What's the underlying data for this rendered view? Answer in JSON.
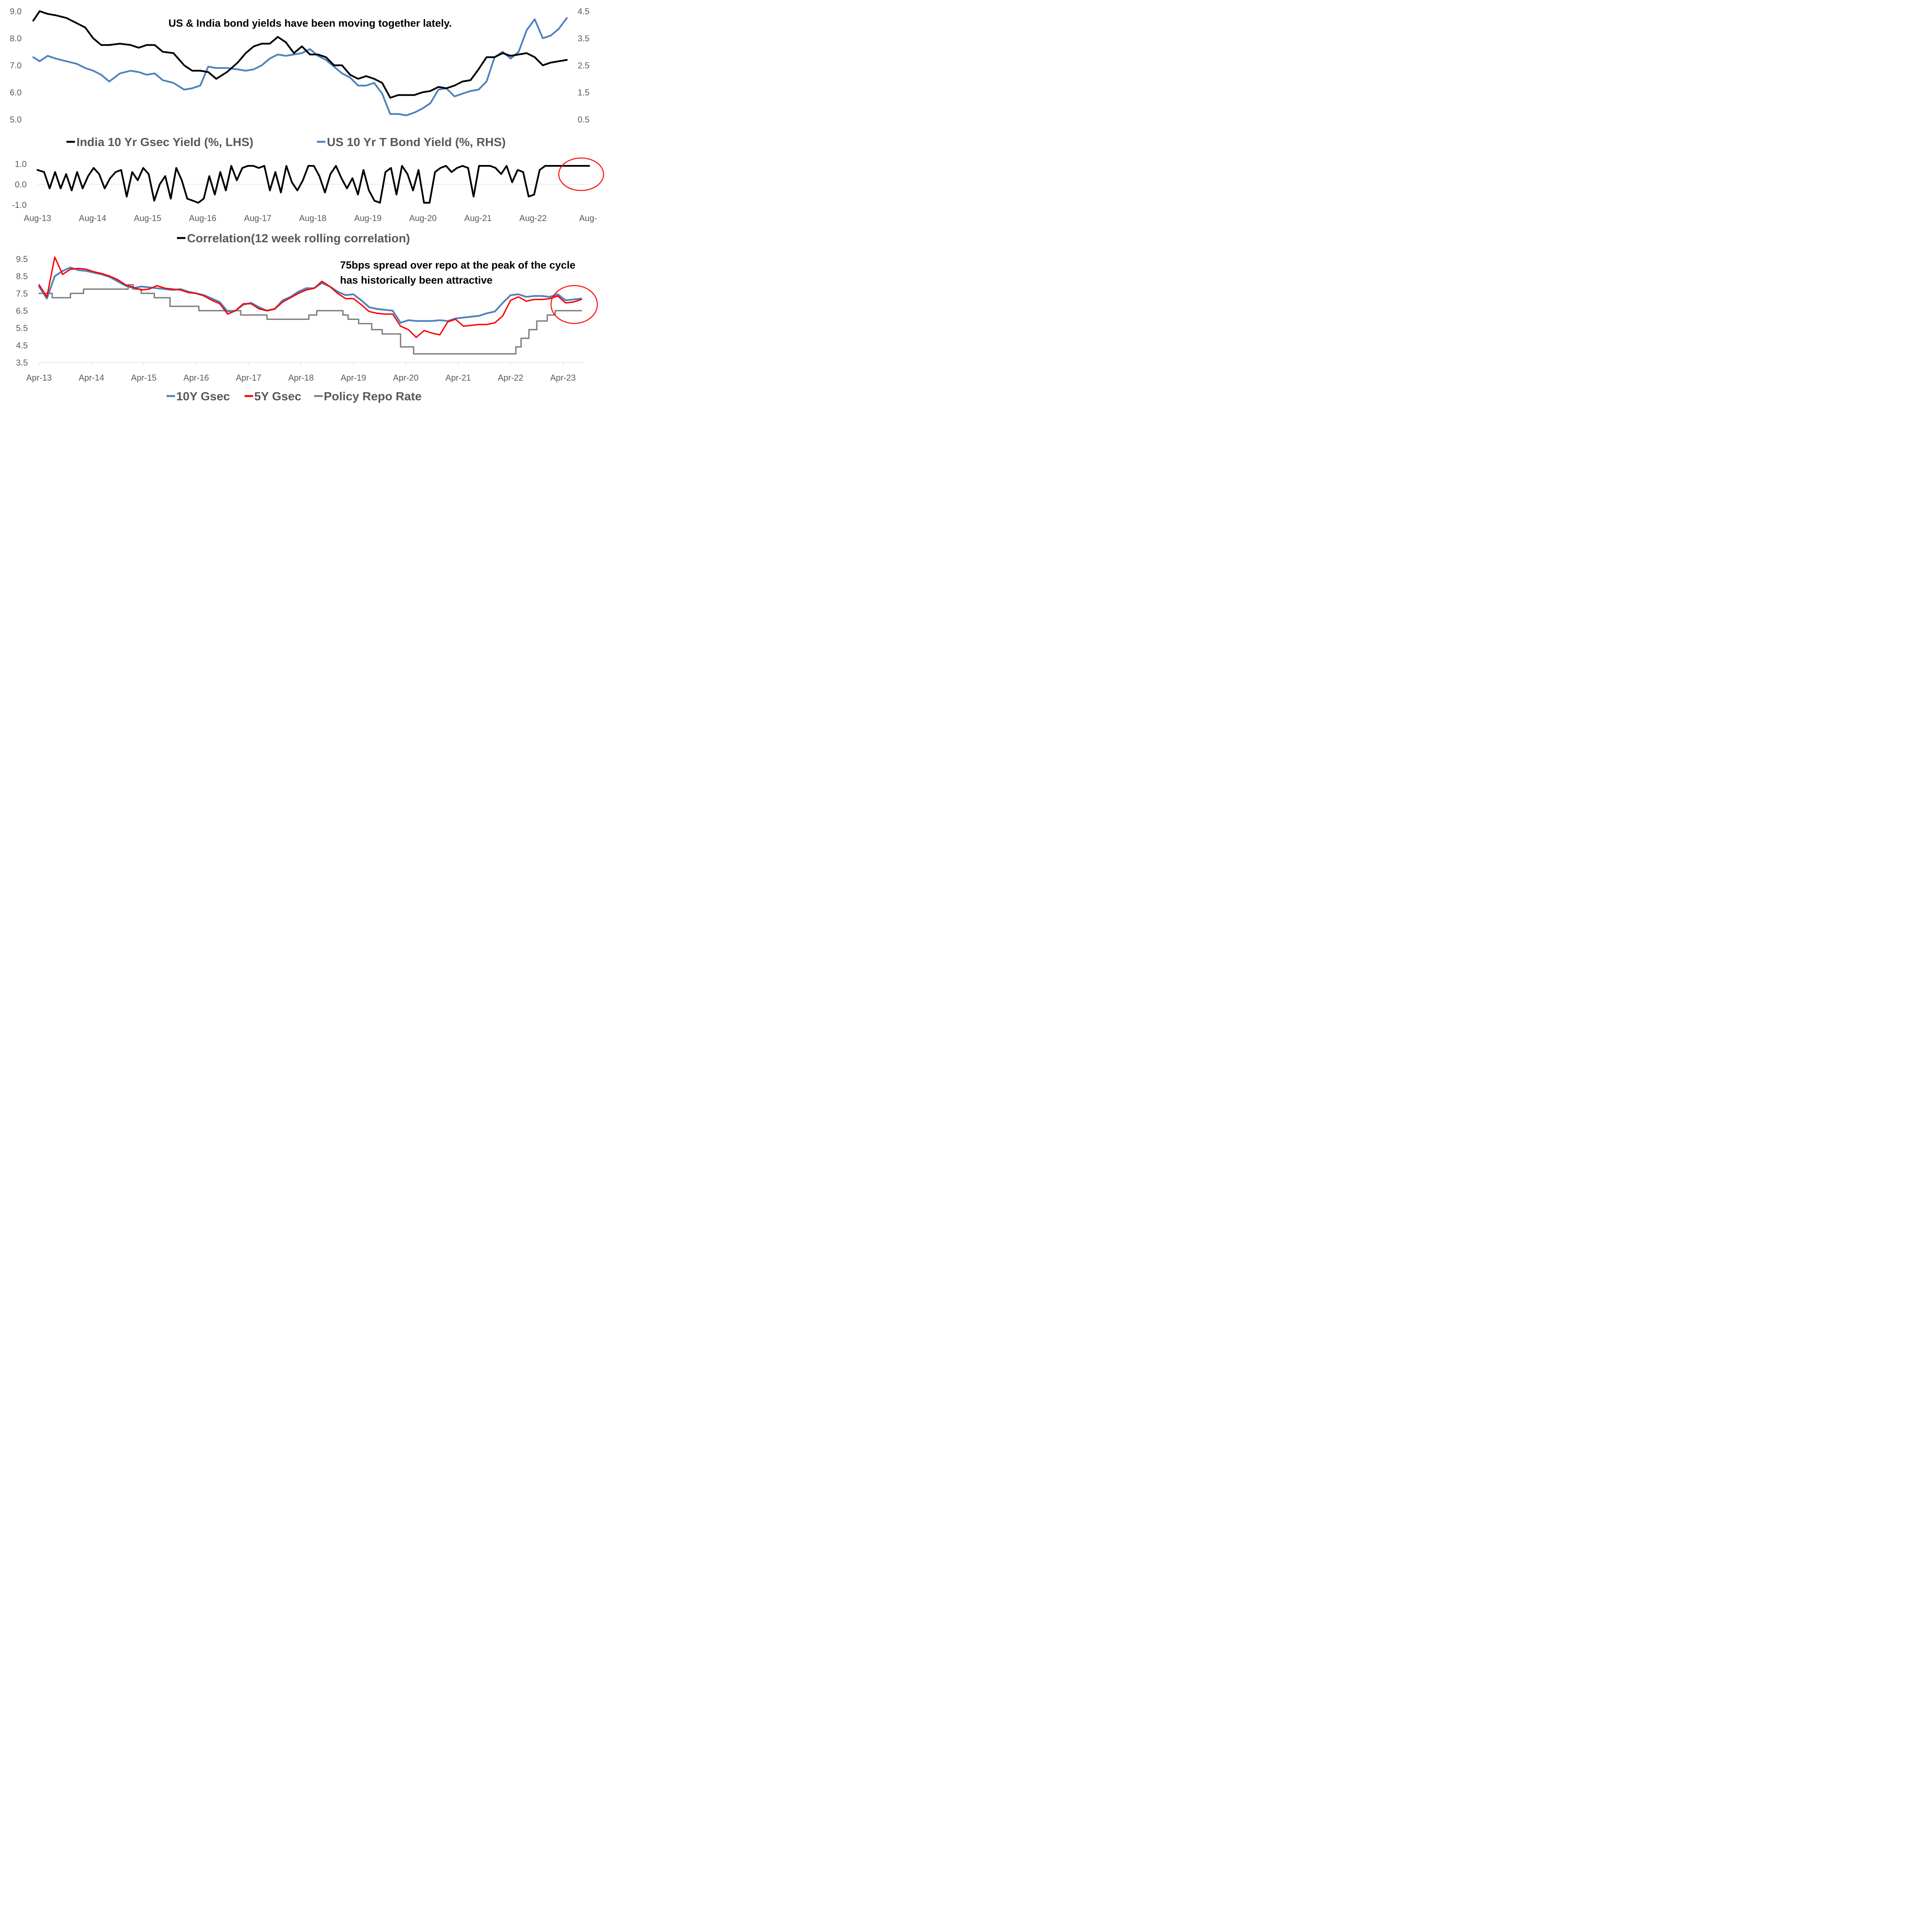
{
  "chart_data": [
    {
      "type": "line",
      "title": "US & India bond yields have been moving together lately.",
      "y_left": {
        "ticks": [
          "9.0",
          "8.0",
          "7.0",
          "6.0",
          "5.0"
        ],
        "range": [
          5.0,
          9.0
        ]
      },
      "y_right": {
        "ticks": [
          "4.5",
          "3.5",
          "2.5",
          "1.5",
          "0.5"
        ],
        "range": [
          0.5,
          4.5
        ]
      },
      "grid": false,
      "legend_position": "bottom",
      "series": [
        {
          "name": "India 10 Yr Gsec Yield (%, LHS)",
          "axis": "left",
          "color": "#000000",
          "x": [
            2013.58,
            2013.7,
            2013.85,
            2014.0,
            2014.2,
            2014.4,
            2014.55,
            2014.7,
            2014.85,
            2015.0,
            2015.2,
            2015.4,
            2015.55,
            2015.7,
            2015.85,
            2016.0,
            2016.2,
            2016.4,
            2016.55,
            2016.7,
            2016.85,
            2017.0,
            2017.2,
            2017.4,
            2017.55,
            2017.7,
            2017.85,
            2018.0,
            2018.15,
            2018.3,
            2018.45,
            2018.6,
            2018.75,
            2018.9,
            2019.05,
            2019.2,
            2019.35,
            2019.5,
            2019.65,
            2019.8,
            2019.95,
            2020.1,
            2020.25,
            2020.4,
            2020.55,
            2020.7,
            2020.85,
            2021.0,
            2021.15,
            2021.3,
            2021.45,
            2021.6,
            2021.75,
            2021.9,
            2022.05,
            2022.2,
            2022.35,
            2022.5,
            2022.65,
            2022.8,
            2022.95,
            2023.1,
            2023.25,
            2023.4,
            2023.55
          ],
          "values": [
            8.65,
            9.0,
            8.9,
            8.85,
            8.75,
            8.55,
            8.4,
            8.0,
            7.75,
            7.75,
            7.8,
            7.75,
            7.65,
            7.75,
            7.75,
            7.5,
            7.45,
            7.0,
            6.8,
            6.8,
            6.75,
            6.5,
            6.75,
            7.1,
            7.45,
            7.7,
            7.8,
            7.8,
            8.05,
            7.85,
            7.45,
            7.7,
            7.4,
            7.4,
            7.3,
            7.0,
            7.0,
            6.65,
            6.5,
            6.6,
            6.5,
            6.35,
            5.8,
            5.9,
            5.9,
            5.9,
            6.0,
            6.05,
            6.2,
            6.15,
            6.25,
            6.4,
            6.45,
            6.85,
            7.3,
            7.3,
            7.45,
            7.35,
            7.4,
            7.45,
            7.3,
            7.0,
            7.1,
            7.15,
            7.2
          ]
        },
        {
          "name": "US 10 Yr T Bond Yield (%, RHS)",
          "axis": "right",
          "color": "#4f81bd",
          "x": [
            2013.58,
            2013.7,
            2013.85,
            2014.0,
            2014.2,
            2014.4,
            2014.55,
            2014.7,
            2014.85,
            2015.0,
            2015.2,
            2015.4,
            2015.55,
            2015.7,
            2015.85,
            2016.0,
            2016.2,
            2016.4,
            2016.55,
            2016.7,
            2016.85,
            2017.0,
            2017.2,
            2017.4,
            2017.55,
            2017.7,
            2017.85,
            2018.0,
            2018.15,
            2018.3,
            2018.45,
            2018.6,
            2018.75,
            2018.9,
            2019.05,
            2019.2,
            2019.35,
            2019.5,
            2019.65,
            2019.8,
            2019.95,
            2020.1,
            2020.25,
            2020.4,
            2020.55,
            2020.7,
            2020.85,
            2021.0,
            2021.15,
            2021.3,
            2021.45,
            2021.6,
            2021.75,
            2021.9,
            2022.05,
            2022.2,
            2022.35,
            2022.5,
            2022.65,
            2022.8,
            2022.95,
            2023.1,
            2023.25,
            2023.4,
            2023.55
          ],
          "values": [
            2.8,
            2.65,
            2.85,
            2.75,
            2.65,
            2.55,
            2.4,
            2.3,
            2.15,
            1.9,
            2.2,
            2.3,
            2.25,
            2.15,
            2.2,
            1.95,
            1.85,
            1.6,
            1.65,
            1.75,
            2.45,
            2.4,
            2.4,
            2.35,
            2.3,
            2.35,
            2.5,
            2.75,
            2.9,
            2.85,
            2.9,
            2.95,
            3.1,
            2.85,
            2.7,
            2.45,
            2.2,
            2.05,
            1.75,
            1.75,
            1.85,
            1.45,
            0.7,
            0.7,
            0.65,
            0.75,
            0.9,
            1.1,
            1.6,
            1.65,
            1.35,
            1.45,
            1.55,
            1.6,
            1.9,
            2.8,
            3.0,
            2.75,
            3.0,
            3.8,
            4.2,
            3.5,
            3.6,
            3.85,
            4.25
          ]
        }
      ],
      "legend_labels": [
        "India 10 Yr Gsec Yield (%, LHS)",
        "US 10 Yr T Bond Yield (%, RHS)"
      ]
    },
    {
      "type": "line",
      "y_left": {
        "ticks": [
          "1.0",
          "0.0",
          "-1.0"
        ],
        "range": [
          -1.0,
          1.0
        ]
      },
      "x_ticks": [
        "Aug-13",
        "Aug-14",
        "Aug-15",
        "Aug-16",
        "Aug-17",
        "Aug-18",
        "Aug-19",
        "Aug-20",
        "Aug-21",
        "Aug-22",
        "Aug-"
      ],
      "grid": false,
      "legend_position": "bottom",
      "series": [
        {
          "name": "Correlation(12 week rolling correlation)",
          "color": "#000000",
          "x": [
            2013.58,
            2013.7,
            2013.8,
            2013.9,
            2014.0,
            2014.1,
            2014.2,
            2014.3,
            2014.4,
            2014.5,
            2014.6,
            2014.7,
            2014.8,
            2014.9,
            2015.0,
            2015.1,
            2015.2,
            2015.3,
            2015.4,
            2015.5,
            2015.6,
            2015.7,
            2015.8,
            2015.9,
            2016.0,
            2016.1,
            2016.2,
            2016.3,
            2016.4,
            2016.5,
            2016.6,
            2016.7,
            2016.8,
            2016.9,
            2017.0,
            2017.1,
            2017.2,
            2017.3,
            2017.4,
            2017.5,
            2017.6,
            2017.7,
            2017.8,
            2017.9,
            2018.0,
            2018.1,
            2018.2,
            2018.3,
            2018.4,
            2018.5,
            2018.6,
            2018.7,
            2018.8,
            2018.9,
            2019.0,
            2019.1,
            2019.2,
            2019.3,
            2019.4,
            2019.5,
            2019.6,
            2019.7,
            2019.8,
            2019.9,
            2020.0,
            2020.1,
            2020.2,
            2020.3,
            2020.4,
            2020.5,
            2020.6,
            2020.7,
            2020.8,
            2020.9,
            2021.0,
            2021.1,
            2021.2,
            2021.3,
            2021.4,
            2021.5,
            2021.6,
            2021.7,
            2021.8,
            2021.9,
            2022.0,
            2022.1,
            2022.2,
            2022.3,
            2022.4,
            2022.5,
            2022.6,
            2022.7,
            2022.8,
            2022.9,
            2023.0,
            2023.1,
            2023.2,
            2023.3,
            2023.4,
            2023.5,
            2023.6
          ],
          "values": [
            0.7,
            0.6,
            -0.2,
            0.6,
            -0.2,
            0.5,
            -0.3,
            0.6,
            -0.2,
            0.4,
            0.8,
            0.5,
            -0.2,
            0.3,
            0.6,
            0.7,
            -0.6,
            0.6,
            0.2,
            0.8,
            0.5,
            -0.8,
            0.0,
            0.4,
            -0.7,
            0.8,
            0.2,
            -0.7,
            -0.8,
            -0.9,
            -0.7,
            0.4,
            -0.5,
            0.6,
            -0.3,
            0.9,
            0.2,
            0.8,
            0.9,
            0.9,
            0.8,
            0.9,
            -0.3,
            0.6,
            -0.4,
            0.9,
            0.1,
            -0.3,
            0.2,
            0.9,
            0.9,
            0.4,
            -0.4,
            0.5,
            0.9,
            0.3,
            -0.2,
            0.3,
            -0.5,
            0.7,
            -0.3,
            -0.8,
            -0.9,
            0.6,
            0.8,
            -0.5,
            0.9,
            0.5,
            -0.3,
            0.7,
            -0.9,
            -0.9,
            0.6,
            0.8,
            0.9,
            0.6,
            0.8,
            0.9,
            0.8,
            -0.6,
            0.9,
            0.9,
            0.9,
            0.8,
            0.5,
            0.9,
            0.1,
            0.7,
            0.6,
            -0.6,
            -0.5,
            0.7,
            0.9,
            0.9,
            0.9,
            0.9,
            0.9,
            0.9,
            0.9,
            0.9,
            0.9
          ]
        }
      ],
      "legend_labels": [
        "Correlation(12 week rolling correlation)"
      ]
    },
    {
      "type": "line",
      "annotation": "75bps spread over repo at the peak of the cycle has historically been attractive",
      "y_left": {
        "ticks": [
          "9.5",
          "8.5",
          "7.5",
          "6.5",
          "5.5",
          "4.5",
          "3.5"
        ],
        "range": [
          3.5,
          9.5
        ]
      },
      "x_ticks": [
        "Apr-13",
        "Apr-14",
        "Apr-15",
        "Apr-16",
        "Apr-17",
        "Apr-18",
        "Apr-19",
        "Apr-20",
        "Apr-21",
        "Apr-22",
        "Apr-23"
      ],
      "grid": false,
      "legend_position": "bottom",
      "series": [
        {
          "name": "10Y Gsec",
          "color": "#4f81bd",
          "x": [
            2013.25,
            2013.4,
            2013.55,
            2013.7,
            2013.85,
            2014.0,
            2014.15,
            2014.3,
            2014.45,
            2014.6,
            2014.75,
            2014.9,
            2015.05,
            2015.2,
            2015.35,
            2015.5,
            2015.65,
            2015.8,
            2015.95,
            2016.1,
            2016.25,
            2016.4,
            2016.55,
            2016.7,
            2016.85,
            2017.0,
            2017.15,
            2017.3,
            2017.45,
            2017.6,
            2017.75,
            2017.9,
            2018.05,
            2018.2,
            2018.35,
            2018.5,
            2018.65,
            2018.8,
            2018.95,
            2019.1,
            2019.25,
            2019.4,
            2019.55,
            2019.7,
            2019.85,
            2020.0,
            2020.15,
            2020.3,
            2020.45,
            2020.6,
            2020.75,
            2020.9,
            2021.05,
            2021.2,
            2021.35,
            2021.5,
            2021.65,
            2021.8,
            2021.95,
            2022.1,
            2022.25,
            2022.4,
            2022.55,
            2022.7,
            2022.85,
            2023.0,
            2023.15,
            2023.3,
            2023.45,
            2023.6
          ],
          "values": [
            7.9,
            7.2,
            8.5,
            8.8,
            9.0,
            8.85,
            8.8,
            8.7,
            8.6,
            8.45,
            8.2,
            7.95,
            7.8,
            7.9,
            7.85,
            7.8,
            7.75,
            7.7,
            7.75,
            7.6,
            7.5,
            7.4,
            7.2,
            7.0,
            6.45,
            6.5,
            6.85,
            6.95,
            6.7,
            6.5,
            6.6,
            7.1,
            7.3,
            7.6,
            7.8,
            7.8,
            8.1,
            7.9,
            7.6,
            7.4,
            7.45,
            7.1,
            6.7,
            6.6,
            6.55,
            6.5,
            5.8,
            5.95,
            5.9,
            5.9,
            5.9,
            5.95,
            5.9,
            6.05,
            6.1,
            6.15,
            6.2,
            6.35,
            6.45,
            6.95,
            7.4,
            7.45,
            7.3,
            7.35,
            7.35,
            7.3,
            7.45,
            7.1,
            7.15,
            7.2
          ]
        },
        {
          "name": "5Y Gsec",
          "color": "#ff0000",
          "x": [
            2013.25,
            2013.4,
            2013.55,
            2013.7,
            2013.85,
            2014.0,
            2014.15,
            2014.3,
            2014.45,
            2014.6,
            2014.75,
            2014.9,
            2015.05,
            2015.2,
            2015.35,
            2015.5,
            2015.65,
            2015.8,
            2015.95,
            2016.1,
            2016.25,
            2016.4,
            2016.55,
            2016.7,
            2016.85,
            2017.0,
            2017.15,
            2017.3,
            2017.45,
            2017.6,
            2017.75,
            2017.9,
            2018.05,
            2018.2,
            2018.35,
            2018.5,
            2018.65,
            2018.8,
            2018.95,
            2019.1,
            2019.25,
            2019.4,
            2019.55,
            2019.7,
            2019.85,
            2020.0,
            2020.15,
            2020.3,
            2020.45,
            2020.6,
            2020.75,
            2020.9,
            2021.05,
            2021.2,
            2021.35,
            2021.5,
            2021.65,
            2021.8,
            2021.95,
            2022.1,
            2022.25,
            2022.4,
            2022.55,
            2022.7,
            2022.85,
            2023.0,
            2023.15,
            2023.3,
            2023.45,
            2023.6
          ],
          "values": [
            8.0,
            7.3,
            9.6,
            8.6,
            8.9,
            8.95,
            8.9,
            8.75,
            8.65,
            8.5,
            8.3,
            8.0,
            7.85,
            7.7,
            7.75,
            7.95,
            7.8,
            7.75,
            7.7,
            7.55,
            7.5,
            7.35,
            7.1,
            6.9,
            6.3,
            6.5,
            6.9,
            6.9,
            6.6,
            6.5,
            6.6,
            7.0,
            7.25,
            7.5,
            7.7,
            7.8,
            8.2,
            7.9,
            7.5,
            7.2,
            7.2,
            6.85,
            6.45,
            6.35,
            6.3,
            6.3,
            5.6,
            5.4,
            4.95,
            5.35,
            5.2,
            5.1,
            5.85,
            6.0,
            5.6,
            5.65,
            5.7,
            5.7,
            5.8,
            6.2,
            7.1,
            7.3,
            7.05,
            7.15,
            7.15,
            7.2,
            7.35,
            6.95,
            7.0,
            7.15
          ]
        },
        {
          "name": "Policy Repo Rate",
          "color": "#7f7f7f",
          "x": [
            2013.25,
            2013.5,
            2013.75,
            2013.85,
            2014.1,
            2014.95,
            2015.05,
            2015.2,
            2015.45,
            2015.75,
            2016.3,
            2016.55,
            2017.1,
            2017.6,
            2018.4,
            2018.55,
            2019.05,
            2019.15,
            2019.35,
            2019.6,
            2019.8,
            2020.0,
            2020.15,
            2020.4,
            2021.0,
            2021.5,
            2022.1,
            2022.35,
            2022.45,
            2022.6,
            2022.75,
            2022.95,
            2023.1,
            2023.6
          ],
          "values": [
            7.5,
            7.25,
            7.25,
            7.5,
            7.75,
            8.0,
            7.75,
            7.5,
            7.25,
            6.75,
            6.5,
            6.5,
            6.25,
            6.0,
            6.25,
            6.5,
            6.25,
            6.0,
            5.75,
            5.4,
            5.15,
            5.15,
            4.4,
            4.0,
            4.0,
            4.0,
            4.0,
            4.4,
            4.9,
            5.4,
            5.9,
            6.25,
            6.5,
            6.5
          ]
        }
      ],
      "legend_labels": [
        "10Y Gsec",
        "5Y Gsec",
        "Policy Repo Rate"
      ]
    }
  ]
}
